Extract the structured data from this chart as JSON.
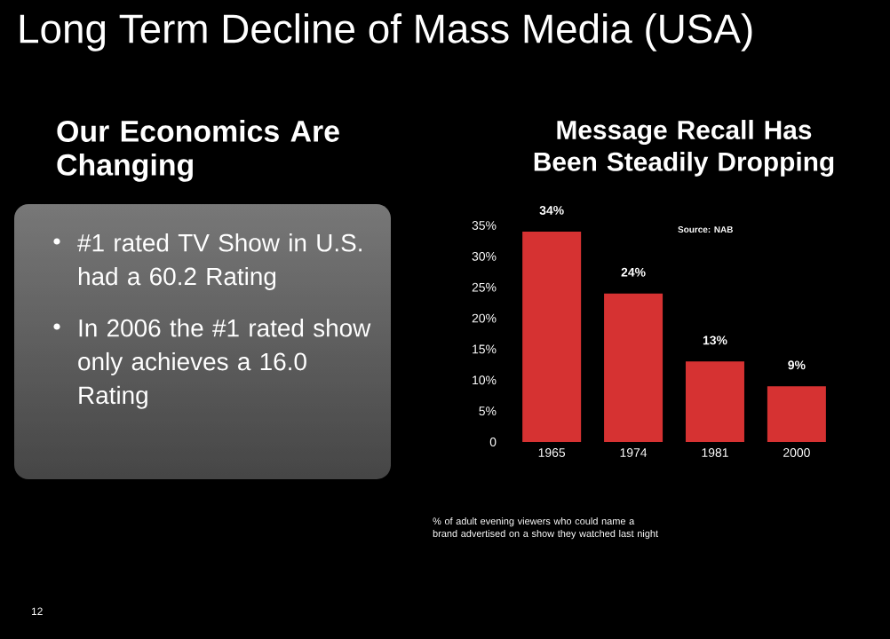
{
  "chart_data": [
    {
      "type": "other",
      "title": "Long Term Decline of Mass Media (USA)",
      "subtitle": "Our Economics Are Changing",
      "annotations": [
        "#1 rated TV Show in U.S. had a 60.2 Rating",
        "In 2006 the #1 rated show only achieves a 16.0 Rating",
        "12"
      ]
    },
    {
      "type": "bar",
      "title": "Message Recall Has Been Steadily Dropping",
      "categories": [
        "1965",
        "1974",
        "1981",
        "2000"
      ],
      "values": [
        34,
        24,
        13,
        9
      ],
      "value_labels": [
        "34%",
        "24%",
        "13%",
        "9%"
      ],
      "color": "#d63232",
      "ylim": [
        0,
        35
      ],
      "yticks": [
        0,
        {
          "value": 5,
          "label": "5%"
        },
        {
          "value": 10,
          "label": "10%"
        },
        {
          "value": 15,
          "label": "15%"
        },
        {
          "value": 20,
          "label": "20%"
        },
        {
          "value": 25,
          "label": "25%"
        },
        {
          "value": 30,
          "label": "30%"
        },
        {
          "value": 35,
          "label": "35%"
        }
      ],
      "annotations": [
        "Source: NAB",
        "% of adult evening viewers who could name a brand advertised on a show they watched last night"
      ]
    }
  ]
}
